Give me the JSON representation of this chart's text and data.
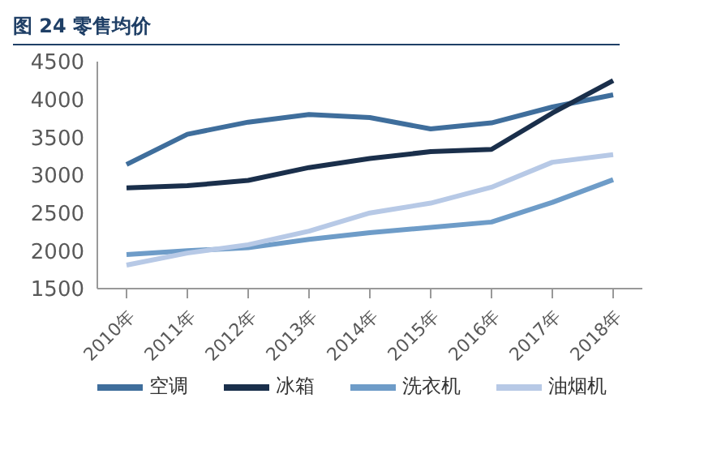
{
  "chart_data": {
    "type": "line",
    "title": "图 24  零售均价",
    "categories": [
      "2010年",
      "2011年",
      "2012年",
      "2013年",
      "2014年",
      "2015年",
      "2016年",
      "2017年",
      "2018年"
    ],
    "series": [
      {
        "name": "空调",
        "color": "#3f6e9c",
        "values": [
          3140,
          3540,
          3700,
          3800,
          3760,
          3610,
          3690,
          3900,
          4060
        ]
      },
      {
        "name": "冰箱",
        "color": "#1a2f4b",
        "values": [
          2830,
          2860,
          2930,
          3100,
          3220,
          3310,
          3340,
          3820,
          4250
        ]
      },
      {
        "name": "洗衣机",
        "color": "#6e9cc8",
        "values": [
          1950,
          2000,
          2040,
          2150,
          2240,
          2310,
          2380,
          2640,
          2940
        ]
      },
      {
        "name": "油烟机",
        "color": "#b7c9e6",
        "values": [
          1810,
          1970,
          2080,
          2260,
          2500,
          2630,
          2840,
          3170,
          3270
        ]
      }
    ],
    "ylim": [
      1500,
      4500
    ],
    "yticks": [
      1500,
      2000,
      2500,
      3000,
      3500,
      4000,
      4500
    ],
    "grid": false,
    "legend": "bottom",
    "marker": "none",
    "line_style": "solid"
  }
}
